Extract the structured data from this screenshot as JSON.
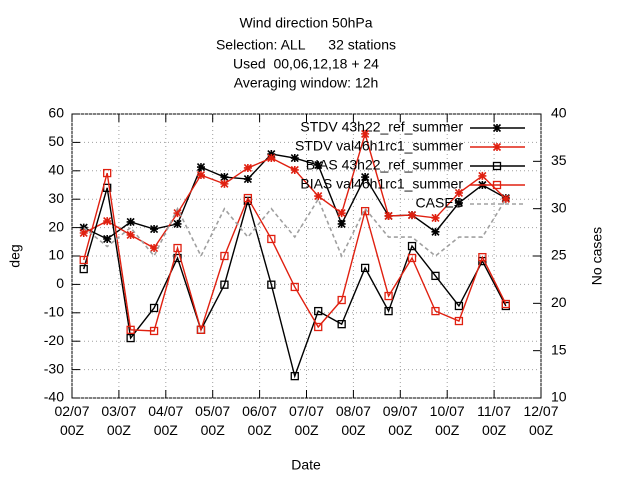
{
  "chart_data": {
    "type": "line",
    "title": [
      "Wind direction 50hPa",
      "Selection: ALL      32 stations",
      "Used  00,06,12,18 + 24",
      "Averaging window: 12h"
    ],
    "xlabel": "Date",
    "ylabel": "deg",
    "y2label": "No cases",
    "x": [
      "02/07 06Z",
      "02/07 18Z",
      "03/07 06Z",
      "03/07 18Z",
      "04/07 06Z",
      "04/07 18Z",
      "05/07 06Z",
      "05/07 18Z",
      "06/07 06Z",
      "06/07 18Z",
      "07/07 06Z",
      "07/07 18Z",
      "08/07 06Z",
      "08/07 18Z",
      "09/07 06Z",
      "09/07 18Z",
      "10/07 06Z",
      "10/07 18Z",
      "11/07 06Z"
    ],
    "xlim": [
      "02/07 00Z",
      "12/07 00Z"
    ],
    "xticks": [
      "02/07\n00Z",
      "03/07\n00Z",
      "04/07\n00Z",
      "05/07\n00Z",
      "06/07\n00Z",
      "07/07\n00Z",
      "08/07\n00Z",
      "09/07\n00Z",
      "10/07\n00Z",
      "11/07\n00Z",
      "12/07\n00Z"
    ],
    "ylim": [
      -40,
      60
    ],
    "yticks": [
      -40,
      -30,
      -20,
      -10,
      0,
      10,
      20,
      30,
      40,
      50,
      60
    ],
    "y2lim": [
      10,
      40
    ],
    "y2ticks": [
      10,
      15,
      20,
      25,
      30,
      35,
      40
    ],
    "grid": true,
    "legend": "top-right",
    "series": [
      {
        "name": "STDV 43h22_ref_summer",
        "color": "#000000",
        "marker": "star",
        "values": [
          20,
          16,
          22,
          19.5,
          21.3,
          41.3,
          37.8,
          37.1,
          45.9,
          44.5,
          42,
          21.3,
          37.8,
          24.1,
          24.4,
          18.5,
          28.7,
          35,
          30.4
        ]
      },
      {
        "name": "STDV val46h1rc1_summer",
        "color": "#e02010",
        "marker": "star",
        "values": [
          18.1,
          22.3,
          17.4,
          12.8,
          25.1,
          38.5,
          35.4,
          41,
          44.5,
          40.3,
          31.1,
          25.1,
          53,
          24.1,
          24.4,
          23.4,
          32.2,
          38.2,
          30.1
        ]
      },
      {
        "name": "BIAS 43h22_ref_summer",
        "color": "#000000",
        "marker": "square",
        "values": [
          5.4,
          34,
          -18.9,
          -8.3,
          9.3,
          -16,
          -0.1,
          29.4,
          -0.1,
          -32.3,
          -9.4,
          -14,
          5.8,
          -9.4,
          13.5,
          3,
          -7.6,
          8.2,
          -7.6
        ]
      },
      {
        "name": "BIAS val46h1rc1_summer",
        "color": "#e02010",
        "marker": "square",
        "values": [
          8.6,
          39.2,
          -16,
          -16.4,
          12.8,
          -16,
          10,
          30.4,
          16,
          -0.9,
          -15,
          -5.5,
          25.8,
          -4.1,
          9.3,
          -9.4,
          -12.9,
          9.6,
          -6.9
        ]
      },
      {
        "name": "CASES",
        "color": "#a0a0a0",
        "marker": "none",
        "dash": true,
        "axis": "y2",
        "values": [
          28,
          26,
          28,
          25,
          30,
          25,
          30,
          27,
          30,
          27,
          31,
          25,
          30,
          27,
          27,
          25,
          27,
          27,
          31
        ]
      }
    ]
  }
}
